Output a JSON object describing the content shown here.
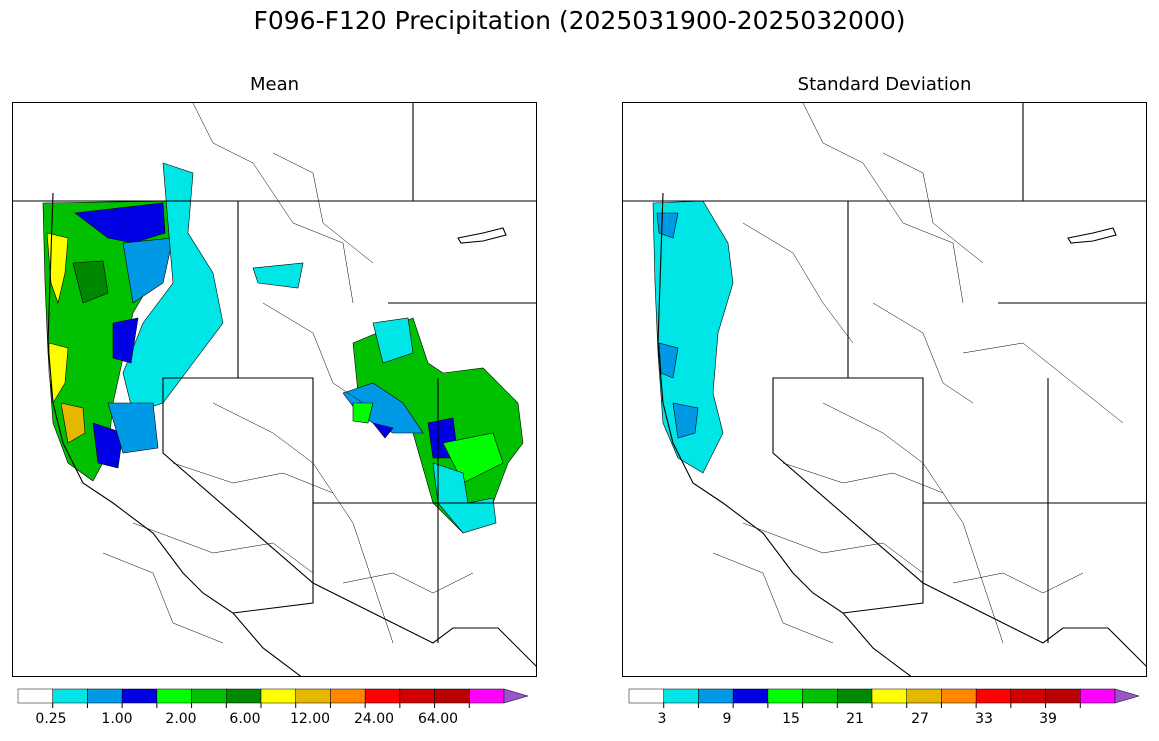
{
  "figure": {
    "title": "F096-F120 Precipitation (2025031900-2025032000)"
  },
  "panels": [
    {
      "title": "Mean",
      "colorbar": {
        "colors": [
          "#ffffff",
          "#00e5e5",
          "#0099e5",
          "#0000e5",
          "#00ff00",
          "#00c000",
          "#008800",
          "#ffff00",
          "#e5b800",
          "#ff8800",
          "#ff0000",
          "#d10000",
          "#b80000",
          "#ff00ff",
          "#9955cc"
        ],
        "extend": "max",
        "tick_labels": [
          "0.25",
          "1.00",
          "2.00",
          "6.00",
          "12.00",
          "24.00",
          "64.00"
        ]
      }
    },
    {
      "title": "Standard Deviation",
      "colorbar": {
        "colors": [
          "#ffffff",
          "#00e5e5",
          "#0099e5",
          "#0000e5",
          "#00ff00",
          "#00c000",
          "#008800",
          "#ffff00",
          "#e5b800",
          "#ff8800",
          "#ff0000",
          "#d10000",
          "#b80000",
          "#ff00ff",
          "#9955cc"
        ],
        "extend": "max",
        "tick_labels": [
          "3",
          "9",
          "15",
          "21",
          "27",
          "33",
          "39"
        ]
      }
    }
  ]
}
